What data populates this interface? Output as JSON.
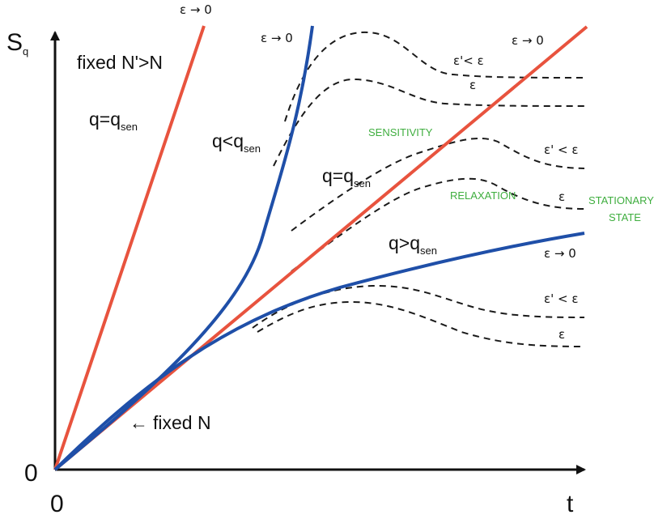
{
  "axes": {
    "y_label": "S",
    "y_label_sub": "q",
    "x_label": "t",
    "origin_x": "0",
    "origin_y": "0"
  },
  "labels": {
    "fixed_n_prime": "fixed N'>N",
    "q_eq_left_main": "q=q",
    "q_eq_left_sub": "sen",
    "q_lt_main": "q<q",
    "q_lt_sub": "sen",
    "q_eq_mid_main": "q=q",
    "q_eq_mid_sub": "sen",
    "q_gt_main": "q>q",
    "q_gt_sub": "sen",
    "fixed_n": "fixed N",
    "fixed_n_arrow": "←"
  },
  "eps_labels": {
    "top_left": "ε → 0",
    "blue_top": "ε → 0",
    "red_right": "ε → 0",
    "blue_right": "ε → 0",
    "upper_eps_prime": "ε'< ε",
    "upper_eps": "ε",
    "mid_eps_prime": "ε' < ε",
    "mid_eps": "ε",
    "low_eps_prime": "ε' < ε",
    "low_eps": "ε"
  },
  "regions": {
    "sensitivity": "SENSITIVITY",
    "relaxation": "RELAXATION",
    "stationary_line1": "STATIONARY",
    "stationary_line2": "STATE"
  },
  "colors": {
    "red": "#e8533e",
    "blue": "#1f4fa8",
    "dashed": "#1a1a1a",
    "axis": "#111111",
    "region_text": "#3fae3f"
  }
}
